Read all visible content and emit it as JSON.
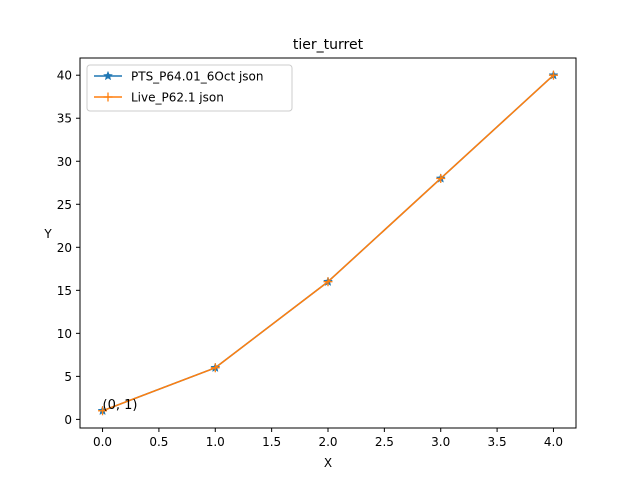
{
  "chart_data": {
    "type": "line",
    "title": "tier_turret",
    "xlabel": "X",
    "ylabel": "Y",
    "xlim": [
      -0.2,
      4.2
    ],
    "ylim": [
      -1,
      42
    ],
    "xticks": [
      0.0,
      0.5,
      1.0,
      1.5,
      2.0,
      2.5,
      3.0,
      3.5,
      4.0
    ],
    "xtick_labels": [
      "0.0",
      "0.5",
      "1.0",
      "1.5",
      "2.0",
      "2.5",
      "3.0",
      "3.5",
      "4.0"
    ],
    "yticks": [
      0,
      5,
      10,
      15,
      20,
      25,
      30,
      35,
      40
    ],
    "ytick_labels": [
      "0",
      "5",
      "10",
      "15",
      "20",
      "25",
      "30",
      "35",
      "40"
    ],
    "grid": false,
    "legend_position": "upper-left",
    "x": [
      0,
      1,
      2,
      3,
      4
    ],
    "series": [
      {
        "name": "PTS_P64.01_6Oct json",
        "values": [
          1,
          6,
          16,
          28,
          40
        ],
        "color": "#1f77b4",
        "marker": "star"
      },
      {
        "name": "Live_P62.1 json",
        "values": [
          1,
          6,
          16,
          28,
          40
        ],
        "color": "#ff7f0e",
        "marker": "plus"
      }
    ],
    "annotations": [
      {
        "text": "(0, 1)",
        "x": 0,
        "y": 1
      }
    ]
  }
}
